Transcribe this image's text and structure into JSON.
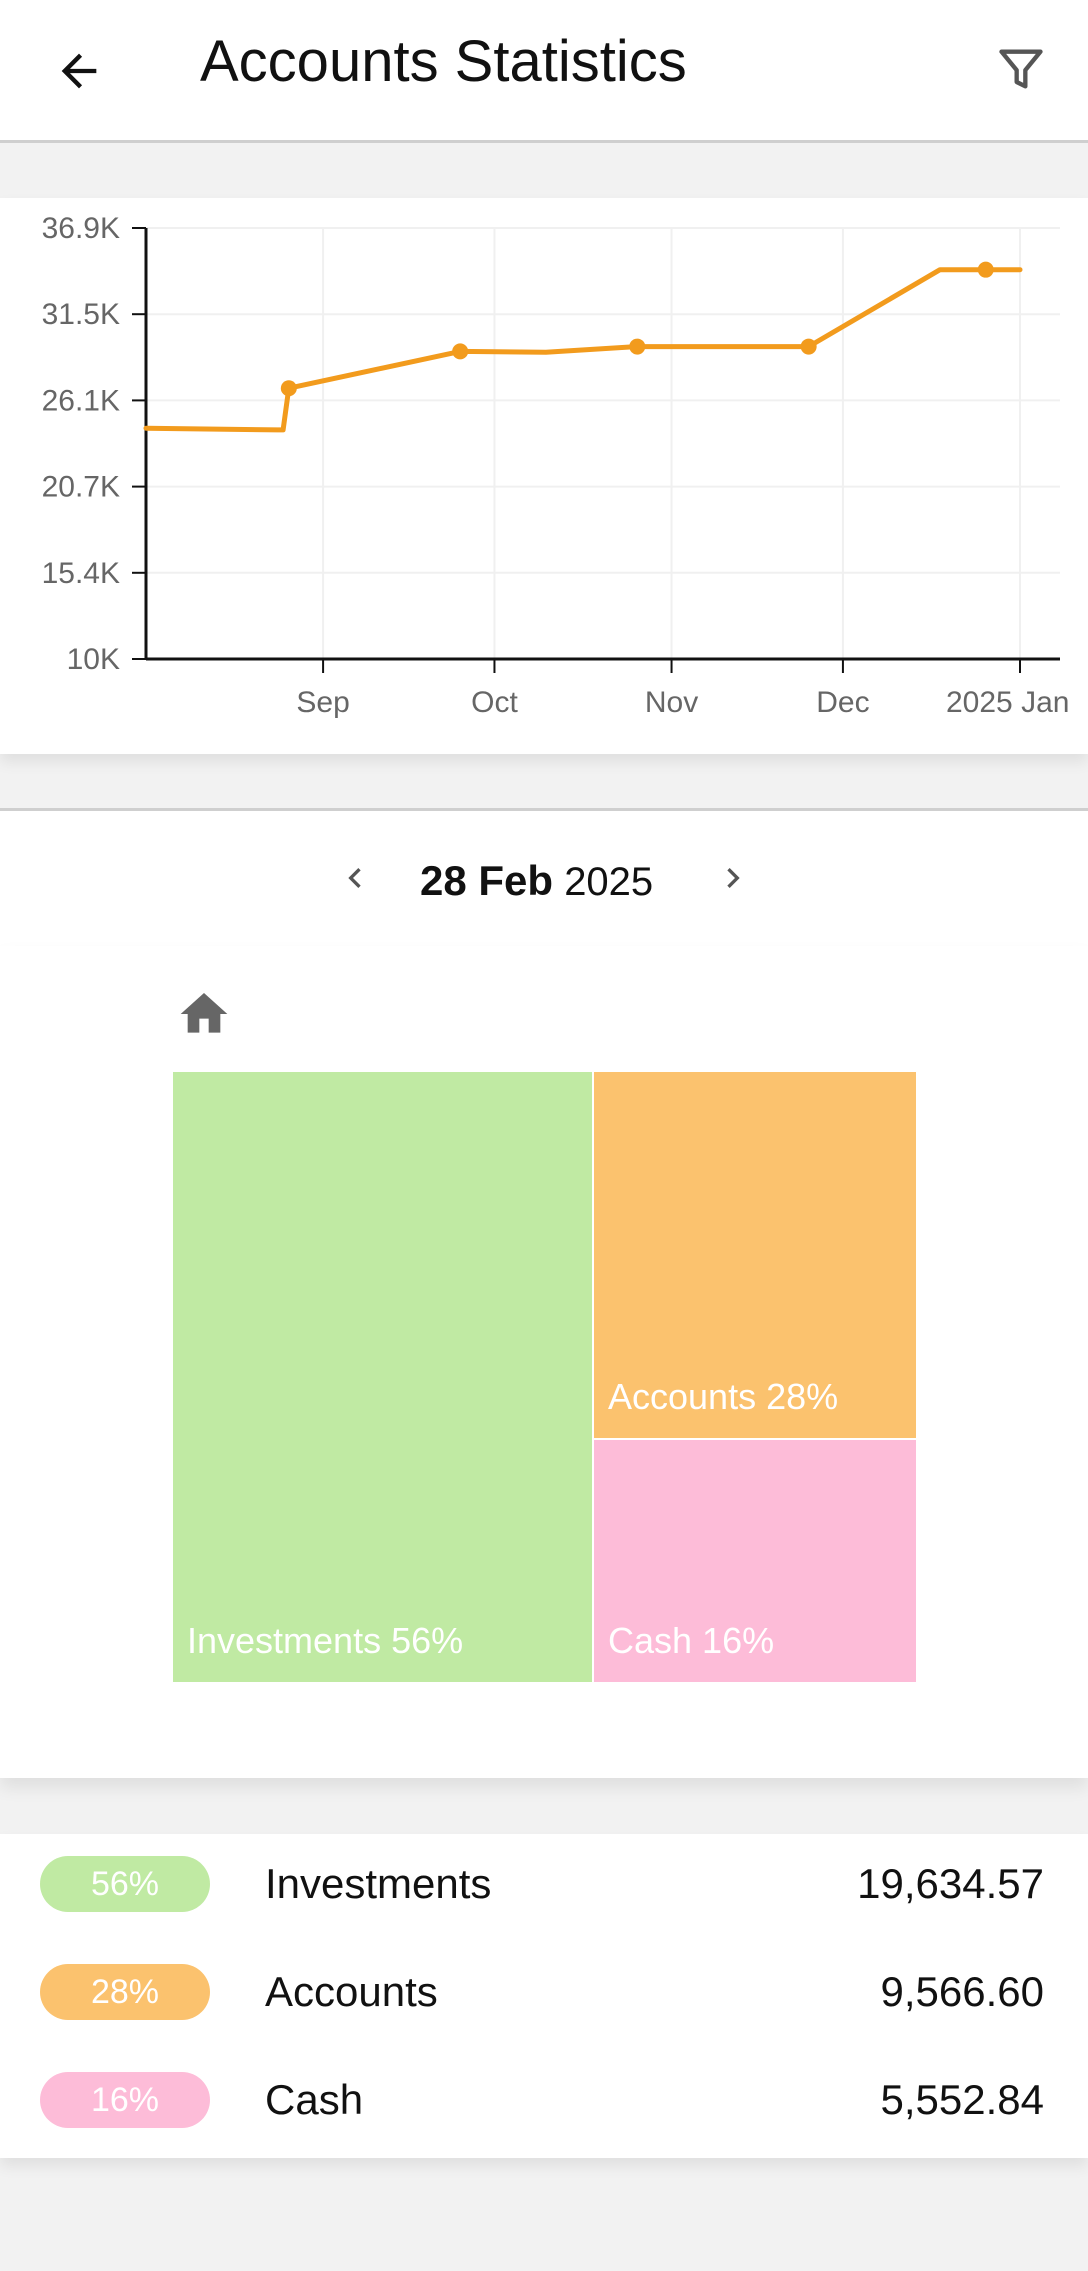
{
  "appbar": {
    "title": "Accounts Statistics",
    "back_icon": "arrow-left-icon",
    "filter_icon": "filter-icon"
  },
  "chart_data": {
    "type": "line",
    "title": "",
    "xlabel": "",
    "ylabel": "",
    "y_ticks": [
      "36.9K",
      "31.5K",
      "26.1K",
      "20.7K",
      "15.4K",
      "10K"
    ],
    "x_ticks": [
      "Sep",
      "Oct",
      "Nov",
      "Dec",
      "2025 Jan"
    ],
    "ylim": [
      10000,
      36900
    ],
    "x": [
      "2024-08-01",
      "2024-08-24",
      "2024-08-25",
      "2024-08-26",
      "2024-09-25",
      "2024-10-10",
      "2024-10-26",
      "2024-11-25",
      "2024-12-18",
      "2024-12-26",
      "2025-01-01"
    ],
    "values": [
      24400,
      24300,
      24300,
      26900,
      29200,
      29150,
      29500,
      29500,
      34300,
      34300,
      34300
    ],
    "markers": [
      {
        "x": "2024-08-26",
        "y": 26900
      },
      {
        "x": "2024-09-25",
        "y": 29200
      },
      {
        "x": "2024-10-26",
        "y": 29500
      },
      {
        "x": "2024-11-25",
        "y": 29500
      },
      {
        "x": "2024-12-26",
        "y": 34300
      }
    ],
    "line_color": "#f29b1d",
    "grid": true
  },
  "date_nav": {
    "day_month": "28 Feb",
    "year": "2025",
    "prev_icon": "chevron-left-icon",
    "next_icon": "chevron-right-icon"
  },
  "treemap": {
    "home_icon": "home-icon",
    "tiles": [
      {
        "label": "Investments 56%",
        "color": "#c0eaa3"
      },
      {
        "label": "Accounts 28%",
        "color": "#fbc26e"
      },
      {
        "label": "Cash 16%",
        "color": "#fdbcd8"
      }
    ]
  },
  "legend": {
    "rows": [
      {
        "percent": "56%",
        "name": "Investments",
        "value": "19,634.57",
        "color": "#c0eaa3"
      },
      {
        "percent": "28%",
        "name": "Accounts",
        "value": "9,566.60",
        "color": "#fbc26e"
      },
      {
        "percent": "16%",
        "name": "Cash",
        "value": "5,552.84",
        "color": "#fdbcd8"
      }
    ]
  }
}
